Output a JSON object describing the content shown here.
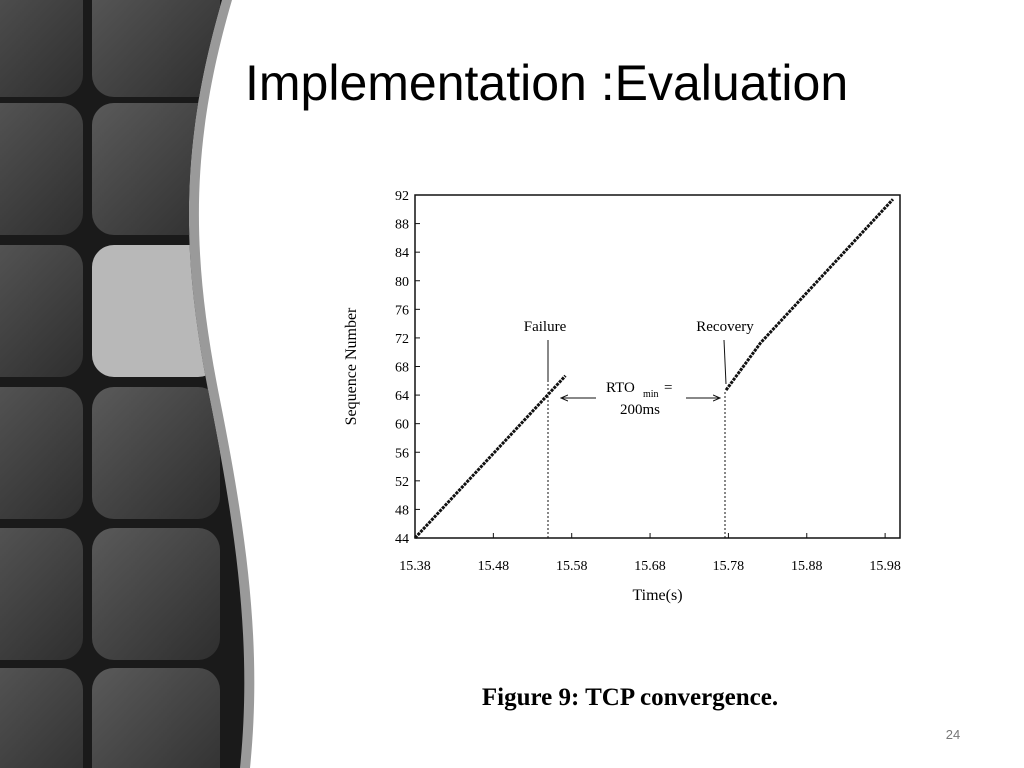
{
  "slide_title": "Implementation :Evaluation",
  "caption": "Figure 9: TCP convergence.",
  "page_number": "24",
  "chart_data": {
    "type": "line",
    "xlabel": "Time(s)",
    "ylabel": "Sequence Number",
    "series": [
      {
        "name": null,
        "color": "#111111",
        "x": [
          15.38,
          15.572
        ],
        "values": [
          44,
          66.7
        ]
      },
      {
        "name": null,
        "color": "#111111",
        "x": [
          15.777,
          15.821,
          15.99
        ],
        "values": [
          64.7,
          71.3,
          91.4
        ]
      }
    ],
    "xlim": [
      15.38,
      15.999
    ],
    "ylim": [
      44,
      92
    ],
    "xticks": [
      15.38,
      15.48,
      15.58,
      15.68,
      15.78,
      15.88,
      15.98
    ],
    "yticks": [
      44,
      48,
      52,
      56,
      60,
      64,
      68,
      72,
      76,
      80,
      84,
      88,
      92
    ],
    "annotations": {
      "failure": "Failure",
      "recovery": "Recovery",
      "rto": "RTO",
      "rto_sub": "min",
      "rto_eq": "=",
      "rto_value": "200ms"
    }
  }
}
